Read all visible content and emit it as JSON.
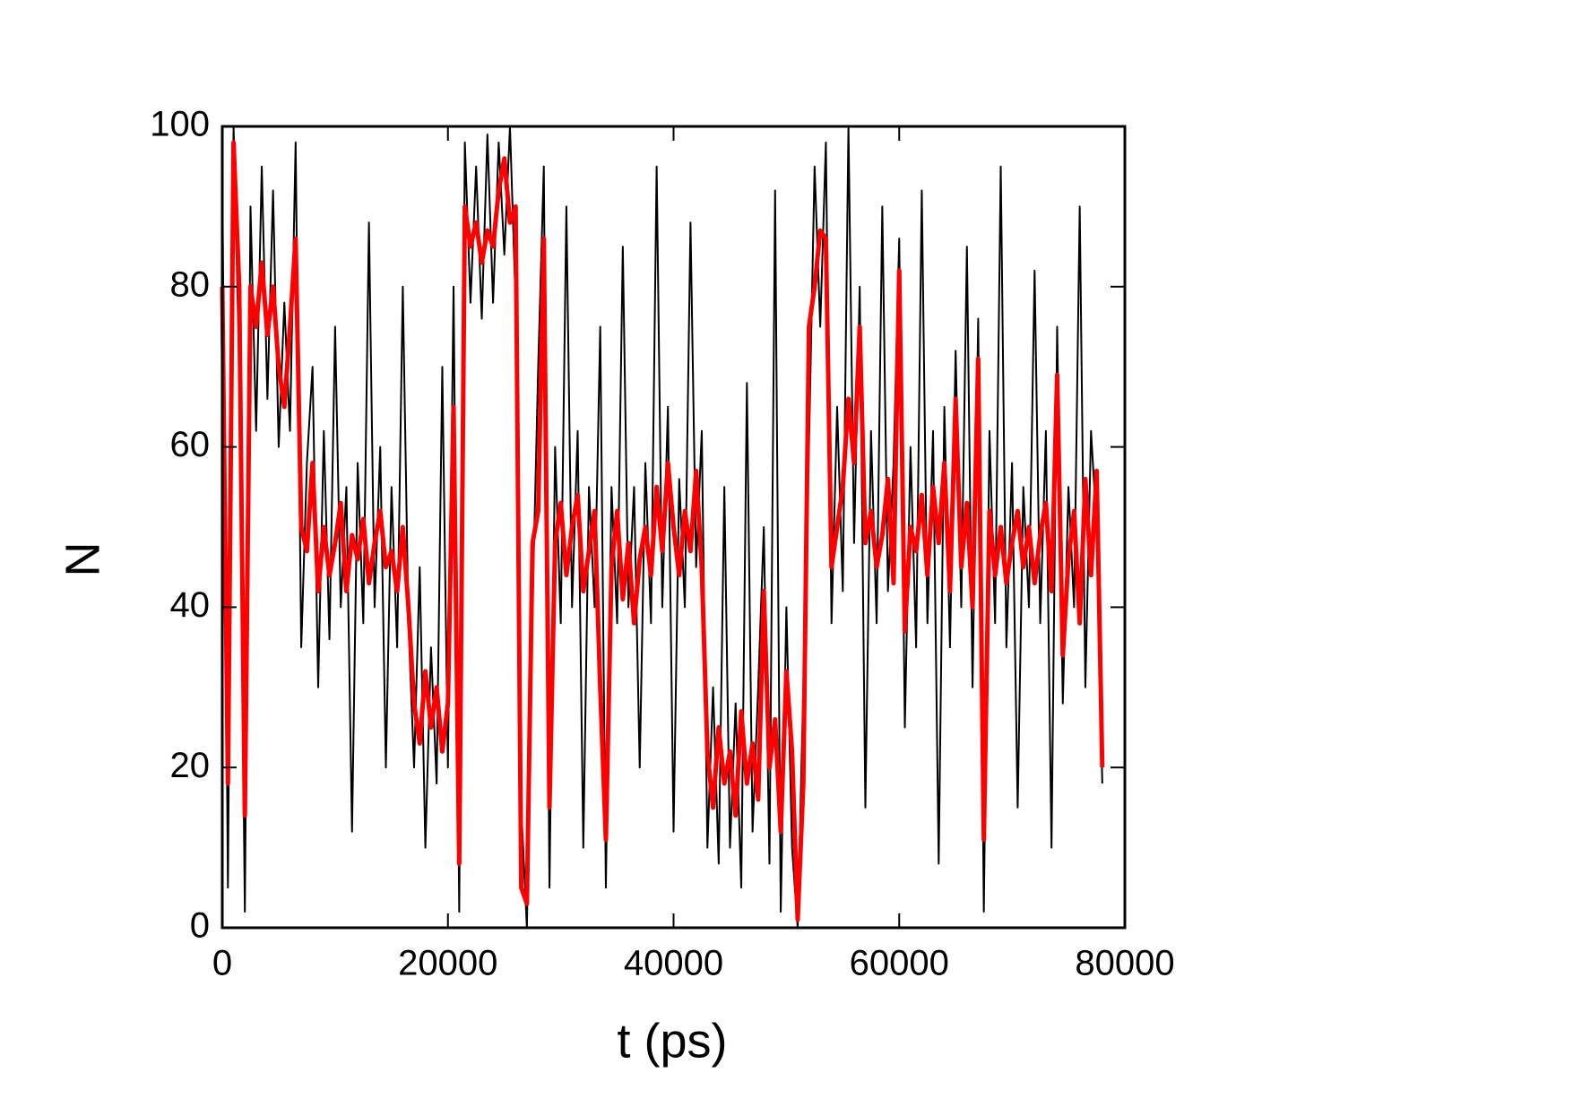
{
  "chart_data": {
    "type": "line",
    "x_label": "t (ps)",
    "y_label": "N",
    "xlim": [
      0,
      80000
    ],
    "xticks": [
      0,
      20000,
      40000,
      60000,
      80000
    ],
    "ylim": [
      0,
      100
    ],
    "yticks": [
      0,
      20,
      40,
      60,
      80,
      100
    ],
    "x": [
      0,
      500,
      1000,
      1500,
      2000,
      2500,
      3000,
      3500,
      4000,
      4500,
      5000,
      5500,
      6000,
      6500,
      7000,
      7500,
      8000,
      8500,
      9000,
      9500,
      10000,
      10500,
      11000,
      11500,
      12000,
      12500,
      13000,
      13500,
      14000,
      14500,
      15000,
      15500,
      16000,
      16500,
      17000,
      17500,
      18000,
      18500,
      19000,
      19500,
      20000,
      20500,
      21000,
      21500,
      22000,
      22500,
      23000,
      23500,
      24000,
      24500,
      25000,
      25500,
      26000,
      26500,
      27000,
      27500,
      28000,
      28500,
      29000,
      29500,
      30000,
      30500,
      31000,
      31500,
      32000,
      32500,
      33000,
      33500,
      34000,
      34500,
      35000,
      35500,
      36000,
      36500,
      37000,
      37500,
      38000,
      38500,
      39000,
      39500,
      40000,
      40500,
      41000,
      41500,
      42000,
      42500,
      43000,
      43500,
      44000,
      44500,
      45000,
      45500,
      46000,
      46500,
      47000,
      47500,
      48000,
      48500,
      49000,
      49500,
      50000,
      50500,
      51000,
      51500,
      52000,
      52500,
      53000,
      53500,
      54000,
      54500,
      55000,
      55500,
      56000,
      56500,
      57000,
      57500,
      58000,
      58500,
      59000,
      59500,
      60000,
      60500,
      61000,
      61500,
      62000,
      62500,
      63000,
      63500,
      64000,
      64500,
      65000,
      65500,
      66000,
      66500,
      67000,
      67500,
      68000,
      68500,
      69000,
      69500,
      70000,
      70500,
      71000,
      71500,
      72000,
      72500,
      73000,
      73500,
      74000,
      74500,
      75000,
      75500,
      76000,
      76500,
      77000,
      77500,
      78000
    ],
    "series": [
      {
        "color": "#000000",
        "width": 2,
        "values": [
          95,
          5,
          100,
          70,
          2,
          90,
          62,
          95,
          66,
          92,
          60,
          78,
          62,
          98,
          35,
          58,
          70,
          30,
          62,
          36,
          75,
          40,
          55,
          12,
          58,
          38,
          88,
          40,
          60,
          20,
          55,
          35,
          80,
          38,
          20,
          45,
          10,
          35,
          18,
          70,
          20,
          80,
          2,
          98,
          78,
          95,
          76,
          99,
          78,
          98,
          84,
          100,
          78,
          15,
          0,
          40,
          70,
          95,
          5,
          60,
          38,
          90,
          40,
          62,
          10,
          55,
          40,
          75,
          5,
          55,
          38,
          85,
          40,
          55,
          20,
          58,
          38,
          95,
          40,
          65,
          12,
          56,
          40,
          88,
          45,
          62,
          10,
          30,
          8,
          55,
          10,
          28,
          5,
          68,
          12,
          30,
          50,
          8,
          92,
          2,
          40,
          10,
          0,
          30,
          60,
          95,
          75,
          98,
          38,
          65,
          42,
          100,
          48,
          80,
          15,
          62,
          38,
          90,
          42,
          58,
          86,
          25,
          60,
          35,
          92,
          38,
          62,
          8,
          65,
          35,
          72,
          40,
          85,
          30,
          76,
          2,
          62,
          38,
          95,
          35,
          58,
          15,
          55,
          40,
          82,
          38,
          62,
          10,
          75,
          28,
          55,
          40,
          90,
          30,
          62,
          50,
          18
        ]
      },
      {
        "color": "#ff0000",
        "width": 5,
        "values": [
          80,
          18,
          98,
          80,
          14,
          80,
          75,
          83,
          74,
          80,
          70,
          65,
          75,
          86,
          50,
          47,
          58,
          42,
          50,
          44,
          48,
          53,
          42,
          49,
          46,
          51,
          43,
          48,
          52,
          45,
          47,
          42,
          50,
          40,
          28,
          23,
          32,
          25,
          30,
          22,
          28,
          65,
          8,
          90,
          85,
          88,
          83,
          87,
          85,
          92,
          96,
          88,
          90,
          5,
          3,
          48,
          52,
          86,
          15,
          48,
          53,
          44,
          50,
          54,
          42,
          47,
          52,
          30,
          11,
          45,
          52,
          41,
          48,
          38,
          46,
          50,
          44,
          55,
          47,
          58,
          50,
          44,
          52,
          47,
          57,
          45,
          22,
          15,
          25,
          18,
          22,
          14,
          27,
          18,
          23,
          16,
          42,
          20,
          26,
          12,
          32,
          22,
          1,
          18,
          75,
          80,
          87,
          86,
          45,
          50,
          55,
          66,
          58,
          75,
          48,
          52,
          45,
          49,
          56,
          43,
          82,
          37,
          50,
          47,
          54,
          44,
          55,
          48,
          58,
          42,
          66,
          45,
          53,
          40,
          71,
          11,
          52,
          44,
          50,
          43,
          48,
          52,
          45,
          50,
          43,
          49,
          53,
          42,
          69,
          34,
          46,
          52,
          38,
          56,
          44,
          57,
          20
        ]
      }
    ]
  }
}
